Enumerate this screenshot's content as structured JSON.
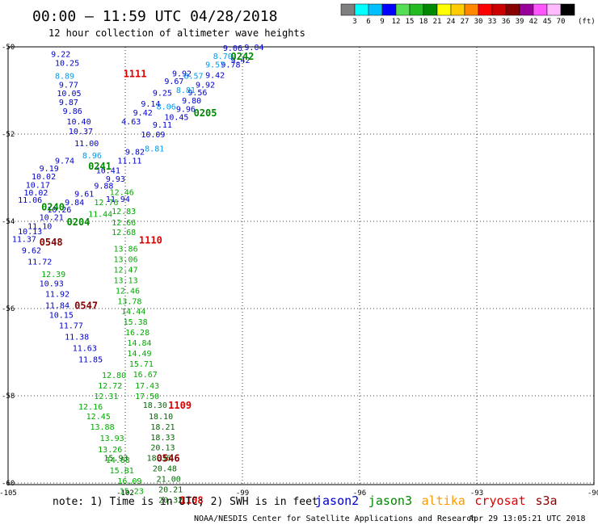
{
  "header": {
    "title": "00:00 – 11:59 UTC 04/28/2018",
    "subtitle": "12 hour collection of altimeter wave heights"
  },
  "colorbar": {
    "unit": "(ft)",
    "bins": [
      {
        "color": "#7f7f7f",
        "label": "3"
      },
      {
        "color": "#00ffff",
        "label": "6"
      },
      {
        "color": "#00bfff",
        "label": "9"
      },
      {
        "color": "#0000ff",
        "label": "12"
      },
      {
        "color": "#55dd55",
        "label": "15"
      },
      {
        "color": "#22bb22",
        "label": "18"
      },
      {
        "color": "#008800",
        "label": "21"
      },
      {
        "color": "#ffff00",
        "label": "24"
      },
      {
        "color": "#ffcc00",
        "label": "27"
      },
      {
        "color": "#ff8800",
        "label": "30"
      },
      {
        "color": "#ff0000",
        "label": "33"
      },
      {
        "color": "#cc0000",
        "label": "36"
      },
      {
        "color": "#880000",
        "label": "39"
      },
      {
        "color": "#990099",
        "label": "42"
      },
      {
        "color": "#ff55ff",
        "label": "45"
      },
      {
        "color": "#ffbbff",
        "label": "70"
      },
      {
        "color": "#000000",
        "label": ""
      }
    ]
  },
  "footer": {
    "note": "note: 1) Time is in UTC; 2) SWH is in feet",
    "legend": [
      {
        "label": "jason2",
        "color": "#0000cc"
      },
      {
        "label": "jason3",
        "color": "#008800"
      },
      {
        "label": "altika",
        "color": "#ff9900"
      },
      {
        "label": "cryosat",
        "color": "#dd0000"
      },
      {
        "label": "s3a",
        "color": "#880000"
      }
    ],
    "credit": "NOAA/NESDIS Center for Satellite Applications and Research",
    "timestamp": "Apr 29 13:05:21 UTC 2018"
  },
  "chart_data": {
    "type": "scatter",
    "title": "00:00 – 11:59 UTC 04/28/2018",
    "subtitle": "12 hour collection of altimeter wave heights",
    "xlabel": "",
    "ylabel": "",
    "xlim": [
      -105,
      -90
    ],
    "ylim": [
      -60.2,
      -49.9
    ],
    "grid": true,
    "x_ticks": [
      -105,
      -102,
      -99,
      -96,
      -93,
      -90
    ],
    "y_ticks": [
      -50,
      -52,
      -54,
      -56,
      -58,
      -60
    ],
    "series": [
      {
        "name": "jason2",
        "color": "#0000cc",
        "points": [
          {
            "x": -103.9,
            "y": -50.16,
            "v": "9.22"
          },
          {
            "x": -103.8,
            "y": -50.36,
            "v": "10.25"
          },
          {
            "x": -103.7,
            "y": -50.86,
            "v": "9.77"
          },
          {
            "x": -103.75,
            "y": -51.06,
            "v": "10.05"
          },
          {
            "x": -103.7,
            "y": -51.26,
            "v": "9.87"
          },
          {
            "x": -103.6,
            "y": -51.46,
            "v": "9.86"
          },
          {
            "x": -103.5,
            "y": -51.7,
            "v": "10.40"
          },
          {
            "x": -103.45,
            "y": -51.93,
            "v": "10.37"
          },
          {
            "x": -103.3,
            "y": -52.2,
            "v": "11.00"
          },
          {
            "x": -103.8,
            "y": -52.6,
            "v": "9.74"
          },
          {
            "x": -104.2,
            "y": -52.78,
            "v": "9.19"
          },
          {
            "x": -104.4,
            "y": -52.96,
            "v": "10.02"
          },
          {
            "x": -104.55,
            "y": -53.16,
            "v": "10.17"
          },
          {
            "x": -104.6,
            "y": -53.33,
            "v": "10.02"
          },
          {
            "x": -104.75,
            "y": -53.5,
            "v": "11.06"
          },
          {
            "x": -104.0,
            "y": -53.72,
            "v": "10.26"
          },
          {
            "x": -104.2,
            "y": -53.9,
            "v": "10.21"
          },
          {
            "x": -104.5,
            "y": -54.1,
            "v": "11.10"
          },
          {
            "x": -104.75,
            "y": -54.22,
            "v": "10.13"
          },
          {
            "x": -104.9,
            "y": -54.4,
            "v": "11.37"
          },
          {
            "x": -104.65,
            "y": -54.66,
            "v": "9.62"
          },
          {
            "x": -104.5,
            "y": -54.92,
            "v": "11.72"
          },
          {
            "x": -104.2,
            "y": -55.42,
            "v": "10.93"
          },
          {
            "x": -104.05,
            "y": -55.66,
            "v": "11.92"
          },
          {
            "x": -104.05,
            "y": -55.92,
            "v": "11.84"
          },
          {
            "x": -103.95,
            "y": -56.14,
            "v": "10.15"
          },
          {
            "x": -103.7,
            "y": -56.38,
            "v": "11.77"
          },
          {
            "x": -103.55,
            "y": -56.64,
            "v": "11.38"
          },
          {
            "x": -103.35,
            "y": -56.9,
            "v": "11.63"
          },
          {
            "x": -103.2,
            "y": -57.16,
            "v": "11.85"
          },
          {
            "x": -99.5,
            "y": -50.02,
            "v": "9.06"
          },
          {
            "x": -98.95,
            "y": -50.0,
            "v": "9.04"
          },
          {
            "x": -99.3,
            "y": -50.3,
            "v": "9.42"
          },
          {
            "x": -99.55,
            "y": -50.4,
            "v": "9.78"
          },
          {
            "x": -99.95,
            "y": -50.64,
            "v": "9.42"
          },
          {
            "x": -100.2,
            "y": -50.86,
            "v": "9.92"
          },
          {
            "x": -100.4,
            "y": -51.04,
            "v": "9.56"
          },
          {
            "x": -100.55,
            "y": -51.22,
            "v": "9.80"
          },
          {
            "x": -100.7,
            "y": -51.42,
            "v": "9.96"
          },
          {
            "x": -101.0,
            "y": -51.6,
            "v": "10.45"
          },
          {
            "x": -101.3,
            "y": -51.78,
            "v": "9.11"
          },
          {
            "x": -101.6,
            "y": -52.0,
            "v": "10.09"
          },
          {
            "x": -102.0,
            "y": -52.4,
            "v": "9.82"
          },
          {
            "x": -102.2,
            "y": -52.6,
            "v": "11.11"
          },
          {
            "x": -102.75,
            "y": -52.82,
            "v": "10.41"
          },
          {
            "x": -102.5,
            "y": -53.02,
            "v": "9.93"
          },
          {
            "x": -102.8,
            "y": -53.18,
            "v": "9.88"
          },
          {
            "x": -102.5,
            "y": -53.48,
            "v": "11.94"
          },
          {
            "x": -103.3,
            "y": -53.36,
            "v": "9.61"
          },
          {
            "x": -103.55,
            "y": -53.56,
            "v": "9.84"
          },
          {
            "x": -100.8,
            "y": -50.6,
            "v": "9.92"
          },
          {
            "x": -101.0,
            "y": -50.78,
            "v": "9.67"
          },
          {
            "x": -101.3,
            "y": -51.05,
            "v": "9.25"
          },
          {
            "x": -101.6,
            "y": -51.3,
            "v": "9.14"
          },
          {
            "x": -101.8,
            "y": -51.5,
            "v": "9.42"
          },
          {
            "x": -102.1,
            "y": -51.7,
            "v": "4.63"
          }
        ]
      },
      {
        "name": "jason2-light",
        "color": "#0099ee",
        "points": [
          {
            "x": -103.8,
            "y": -50.66,
            "v": "8.89"
          },
          {
            "x": -99.75,
            "y": -50.2,
            "v": "8.70"
          },
          {
            "x": -99.95,
            "y": -50.4,
            "v": "9.57"
          },
          {
            "x": -100.5,
            "y": -50.66,
            "v": "8.57"
          },
          {
            "x": -100.7,
            "y": -50.98,
            "v": "8.81"
          },
          {
            "x": -101.2,
            "y": -51.36,
            "v": "8.06"
          },
          {
            "x": -103.1,
            "y": -52.48,
            "v": "8.96"
          },
          {
            "x": -101.5,
            "y": -52.32,
            "v": "8.81"
          }
        ]
      },
      {
        "name": "jason3",
        "color": "#00aa00",
        "points": [
          {
            "x": -102.4,
            "y": -53.32,
            "v": "12.46"
          },
          {
            "x": -102.35,
            "y": -53.76,
            "v": "12.83"
          },
          {
            "x": -102.35,
            "y": -54.02,
            "v": "12.66"
          },
          {
            "x": -102.35,
            "y": -54.24,
            "v": "12.68"
          },
          {
            "x": -102.3,
            "y": -54.62,
            "v": "13.86"
          },
          {
            "x": -102.3,
            "y": -54.86,
            "v": "13.06"
          },
          {
            "x": -102.3,
            "y": -55.1,
            "v": "12.47"
          },
          {
            "x": -102.3,
            "y": -55.34,
            "v": "13.13"
          },
          {
            "x": -102.25,
            "y": -55.58,
            "v": "12.46"
          },
          {
            "x": -102.2,
            "y": -55.82,
            "v": "13.78"
          },
          {
            "x": -102.1,
            "y": -56.06,
            "v": "14.44"
          },
          {
            "x": -102.05,
            "y": -56.3,
            "v": "15.38"
          },
          {
            "x": -102.0,
            "y": -56.54,
            "v": "16.28"
          },
          {
            "x": -101.95,
            "y": -56.78,
            "v": "14.84"
          },
          {
            "x": -101.95,
            "y": -57.02,
            "v": "14.49"
          },
          {
            "x": -101.9,
            "y": -57.26,
            "v": "15.71"
          },
          {
            "x": -101.8,
            "y": -57.5,
            "v": "16.67"
          },
          {
            "x": -101.75,
            "y": -57.76,
            "v": "17.43"
          },
          {
            "x": -101.75,
            "y": -58.0,
            "v": "17.50"
          },
          {
            "x": -102.6,
            "y": -57.52,
            "v": "12.80"
          },
          {
            "x": -102.7,
            "y": -57.76,
            "v": "12.72"
          },
          {
            "x": -102.8,
            "y": -58.0,
            "v": "12.31"
          },
          {
            "x": -103.2,
            "y": -58.24,
            "v": "12.16"
          },
          {
            "x": -103.0,
            "y": -58.46,
            "v": "12.45"
          },
          {
            "x": -102.9,
            "y": -58.7,
            "v": "13.88"
          },
          {
            "x": -102.65,
            "y": -58.96,
            "v": "13.93"
          },
          {
            "x": -102.7,
            "y": -59.22,
            "v": "13.26"
          },
          {
            "x": -102.5,
            "y": -59.46,
            "v": "14.88"
          },
          {
            "x": -102.4,
            "y": -59.7,
            "v": "15.81"
          },
          {
            "x": -102.2,
            "y": -59.94,
            "v": "16.09"
          },
          {
            "x": -102.15,
            "y": -60.18,
            "v": "15.23"
          },
          {
            "x": -104.15,
            "y": -55.2,
            "v": "12.39"
          },
          {
            "x": -102.8,
            "y": -53.56,
            "v": "12.76"
          },
          {
            "x": -102.95,
            "y": -53.82,
            "v": "11.44"
          }
        ]
      },
      {
        "name": "jason3-dark",
        "color": "#006600",
        "points": [
          {
            "x": -101.55,
            "y": -58.2,
            "v": "18.30"
          },
          {
            "x": -101.4,
            "y": -58.46,
            "v": "18.10"
          },
          {
            "x": -101.35,
            "y": -58.7,
            "v": "18.21"
          },
          {
            "x": -101.35,
            "y": -58.94,
            "v": "18.33"
          },
          {
            "x": -101.35,
            "y": -59.18,
            "v": "20.13"
          },
          {
            "x": -102.55,
            "y": -59.42,
            "v": "15.93"
          },
          {
            "x": -101.45,
            "y": -59.42,
            "v": "18.36"
          },
          {
            "x": -101.3,
            "y": -59.66,
            "v": "20.48"
          },
          {
            "x": -101.2,
            "y": -59.9,
            "v": "21.00"
          },
          {
            "x": -101.15,
            "y": -60.14,
            "v": "20.21"
          },
          {
            "x": -101.15,
            "y": -60.38,
            "v": "20.32"
          }
        ]
      },
      {
        "name": "altika",
        "color": "#ffcc00",
        "points": [
          {
            "x": -101.0,
            "y": -59.42,
            "v": "."
          }
        ]
      }
    ],
    "time_labels": [
      {
        "x": -102.05,
        "y": -50.6,
        "label": "1111",
        "color": "#dd0000"
      },
      {
        "x": -99.3,
        "y": -50.2,
        "label": "0242",
        "color": "#008800"
      },
      {
        "x": -100.25,
        "y": -51.5,
        "label": "0205",
        "color": "#008800"
      },
      {
        "x": -102.95,
        "y": -52.72,
        "label": "0241",
        "color": "#008800"
      },
      {
        "x": -104.15,
        "y": -53.66,
        "label": "0240",
        "color": "#008800"
      },
      {
        "x": -103.5,
        "y": -54.0,
        "label": "0204",
        "color": "#008800"
      },
      {
        "x": -104.2,
        "y": -54.46,
        "label": "0548",
        "color": "#880000"
      },
      {
        "x": -101.65,
        "y": -54.42,
        "label": "1110",
        "color": "#dd0000"
      },
      {
        "x": -103.3,
        "y": -55.92,
        "label": "0547",
        "color": "#880000"
      },
      {
        "x": -100.9,
        "y": -58.2,
        "label": "1109",
        "color": "#dd0000"
      },
      {
        "x": -101.2,
        "y": -59.42,
        "label": "0546",
        "color": "#880000"
      },
      {
        "x": -100.6,
        "y": -60.38,
        "label": "1108",
        "color": "#dd0000"
      }
    ]
  }
}
